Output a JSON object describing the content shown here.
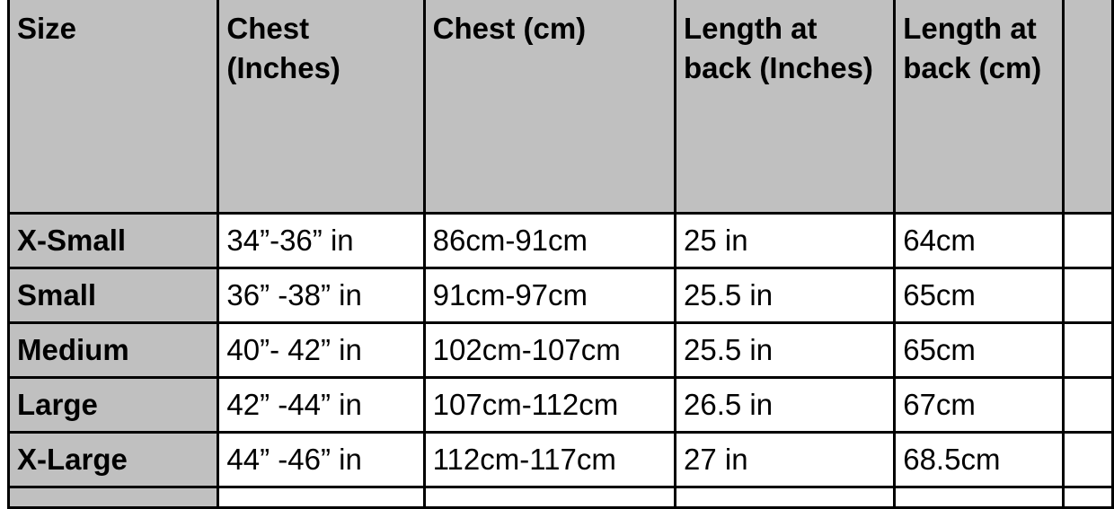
{
  "table": {
    "headers": [
      "Size",
      "Chest (Inches)",
      "Chest (cm)",
      "Length at back (Inches)",
      "Length at back (cm)",
      ""
    ],
    "rows": [
      [
        "X-Small",
        "34”-36” in",
        "86cm-91cm",
        "25 in",
        "64cm"
      ],
      [
        "Small",
        "36” -38” in",
        "91cm-97cm",
        "25.5 in",
        "65cm"
      ],
      [
        "Medium",
        "40”- 42” in",
        "102cm-107cm",
        "25.5 in",
        "65cm"
      ],
      [
        "Large",
        "42” -44” in",
        "107cm-112cm",
        "26.5 in",
        "67cm"
      ],
      [
        "X-Large",
        "44” -46” in",
        "112cm-117cm",
        "27 in",
        "68.5cm"
      ]
    ]
  },
  "colors": {
    "header_bg": "#c0c0c0",
    "cell_bg": "#ffffff",
    "border": "#000000"
  }
}
